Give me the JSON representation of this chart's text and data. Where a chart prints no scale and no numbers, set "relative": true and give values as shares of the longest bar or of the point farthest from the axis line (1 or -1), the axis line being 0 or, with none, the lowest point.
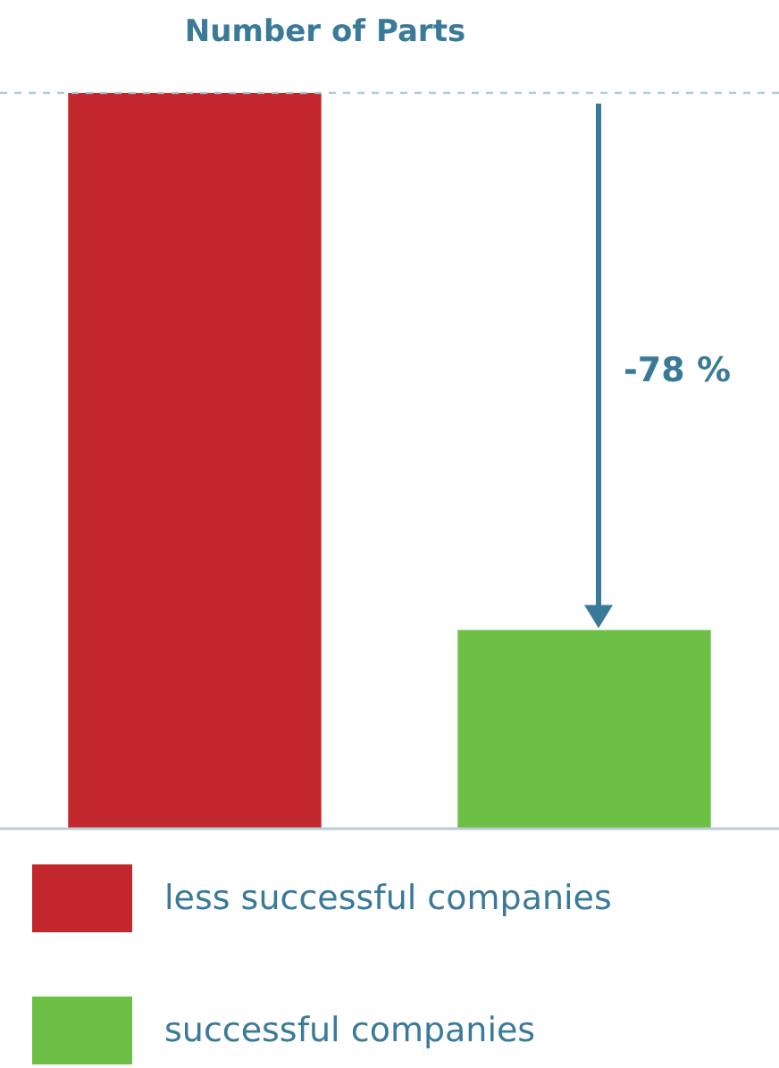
{
  "chart_data": {
    "type": "bar",
    "title": "Number of Parts",
    "relative": true,
    "stacked": true,
    "categories": [
      null,
      null
    ],
    "series": [
      {
        "name": "less successful companies",
        "color": "#c1272d",
        "values": [
          1,
          null
        ]
      },
      {
        "name": "successful companies",
        "color": "#6dbf45",
        "values": [
          null,
          0.27
        ]
      }
    ],
    "annotations": [
      "-78 %"
    ],
    "legend": "bottom",
    "grid": false
  }
}
